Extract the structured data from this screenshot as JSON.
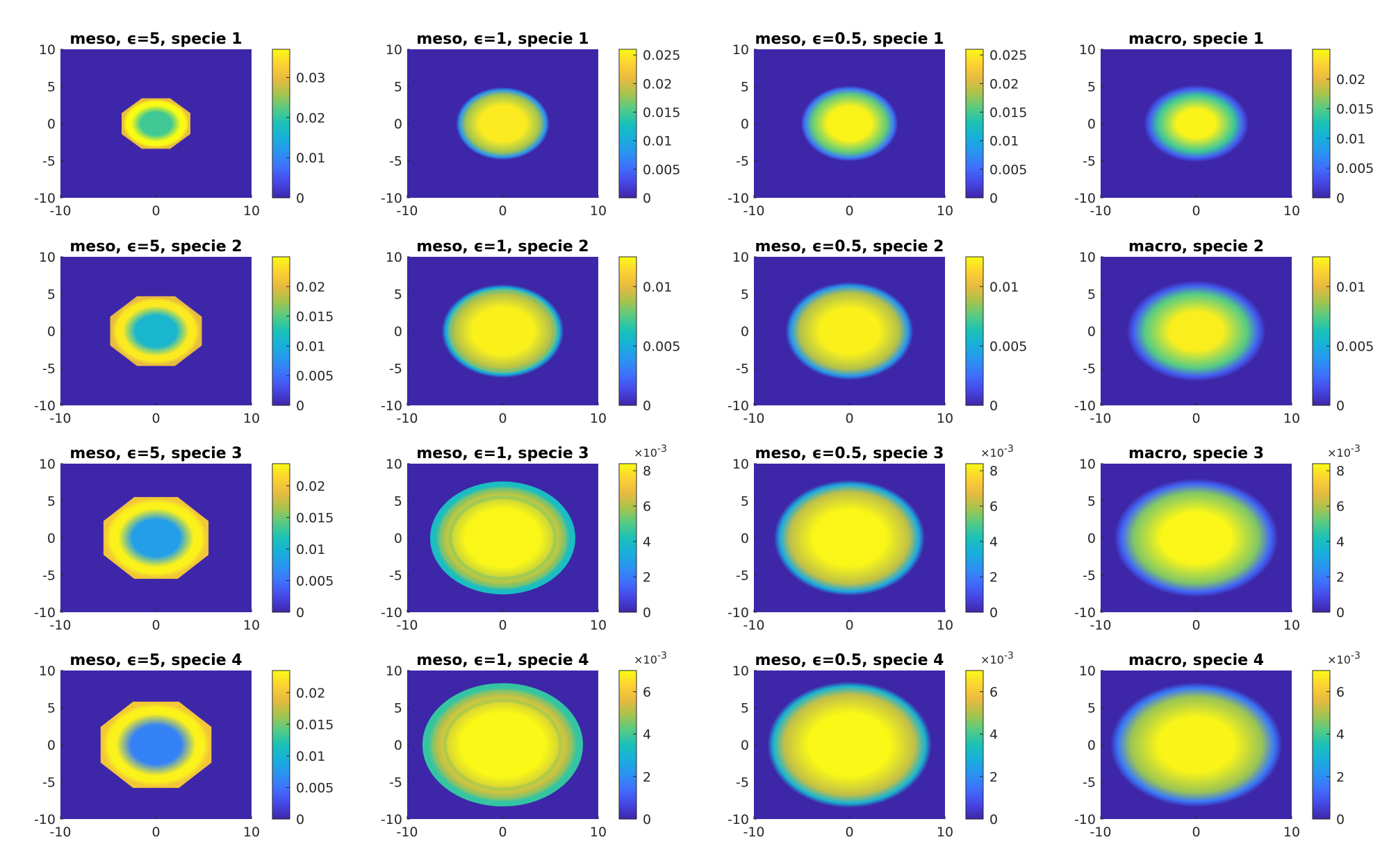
{
  "chart_data": {
    "type": "heatmap",
    "title": "",
    "colormap": "parula",
    "background_color": "#3e26a8",
    "columns": [
      "meso, eps=5",
      "meso, eps=1",
      "meso, eps=0.5",
      "macro"
    ],
    "panels": [
      {
        "title": "meso, ϵ=5, specie 1",
        "xlim": [
          -10,
          10
        ],
        "ylim": [
          -10,
          10
        ],
        "xticks": [
          "-10",
          "0",
          "10"
        ],
        "yticks": [
          "10",
          "5",
          "0",
          "-5",
          "-10"
        ],
        "clim": [
          0,
          0.037
        ],
        "cbar_ticks": [
          {
            "v": 0,
            "label": "0"
          },
          {
            "v": 0.01,
            "label": "0.01"
          },
          {
            "v": 0.02,
            "label": "0.02"
          },
          {
            "v": 0.03,
            "label": "0.03"
          }
        ],
        "cbar_exponent": "",
        "blob": {
          "shape": "octagon",
          "radius_x": 3.6,
          "radius_y": 3.4,
          "center_value": 0.021,
          "ring_value": 0.037,
          "edge_value": 0.03,
          "softness": 0.0,
          "rings": 0
        }
      },
      {
        "title": "meso, ϵ=1, specie 1",
        "xlim": [
          -10,
          10
        ],
        "ylim": [
          -10,
          10
        ],
        "xticks": [
          "-10",
          "0",
          "10"
        ],
        "yticks": [
          "10",
          "5",
          "0",
          "-5",
          "-10"
        ],
        "clim": [
          0,
          0.026
        ],
        "cbar_ticks": [
          {
            "v": 0,
            "label": "0"
          },
          {
            "v": 0.005,
            "label": "0.005"
          },
          {
            "v": 0.01,
            "label": "0.01"
          },
          {
            "v": 0.015,
            "label": "0.015"
          },
          {
            "v": 0.02,
            "label": "0.02"
          },
          {
            "v": 0.025,
            "label": "0.025"
          }
        ],
        "cbar_exponent": "",
        "blob": {
          "shape": "ellipse",
          "radius_x": 4.9,
          "radius_y": 4.9,
          "center_value": 0.025,
          "ring_value": 0.018,
          "edge_value": 0.008,
          "softness": 0.15,
          "rings": 0
        }
      },
      {
        "title": "meso, ϵ=0.5, specie 1",
        "xlim": [
          -10,
          10
        ],
        "ylim": [
          -10,
          10
        ],
        "xticks": [
          "-10",
          "0",
          "10"
        ],
        "yticks": [
          "10",
          "5",
          "0",
          "-5",
          "-10"
        ],
        "clim": [
          0,
          0.026
        ],
        "cbar_ticks": [
          {
            "v": 0,
            "label": "0"
          },
          {
            "v": 0.005,
            "label": "0.005"
          },
          {
            "v": 0.01,
            "label": "0.01"
          },
          {
            "v": 0.015,
            "label": "0.015"
          },
          {
            "v": 0.02,
            "label": "0.02"
          },
          {
            "v": 0.025,
            "label": "0.025"
          }
        ],
        "cbar_exponent": "",
        "blob": {
          "shape": "ellipse",
          "radius_x": 5.1,
          "radius_y": 5.1,
          "center_value": 0.0255,
          "ring_value": 0.016,
          "edge_value": 0.006,
          "softness": 0.25,
          "rings": 0
        }
      },
      {
        "title": "macro, specie 1",
        "xlim": [
          -10,
          10
        ],
        "ylim": [
          -10,
          10
        ],
        "xticks": [
          "-10",
          "0",
          "10"
        ],
        "yticks": [
          "10",
          "5",
          "0",
          "-5",
          "-10"
        ],
        "clim": [
          0,
          0.025
        ],
        "cbar_ticks": [
          {
            "v": 0,
            "label": "0"
          },
          {
            "v": 0.005,
            "label": "0.005"
          },
          {
            "v": 0.01,
            "label": "0.01"
          },
          {
            "v": 0.015,
            "label": "0.015"
          },
          {
            "v": 0.02,
            "label": "0.02"
          }
        ],
        "cbar_exponent": "",
        "blob": {
          "shape": "ellipse",
          "radius_x": 5.5,
          "radius_y": 5.2,
          "center_value": 0.0245,
          "ring_value": 0.014,
          "edge_value": 0.004,
          "softness": 0.45,
          "rings": 0
        }
      },
      {
        "title": "meso, ϵ=5, specie 2",
        "xlim": [
          -10,
          10
        ],
        "ylim": [
          -10,
          10
        ],
        "xticks": [
          "-10",
          "0",
          "10"
        ],
        "yticks": [
          "10",
          "5",
          "0",
          "-5",
          "-10"
        ],
        "clim": [
          0,
          0.025
        ],
        "cbar_ticks": [
          {
            "v": 0,
            "label": "0"
          },
          {
            "v": 0.005,
            "label": "0.005"
          },
          {
            "v": 0.01,
            "label": "0.01"
          },
          {
            "v": 0.015,
            "label": "0.015"
          },
          {
            "v": 0.02,
            "label": "0.02"
          }
        ],
        "cbar_exponent": "",
        "blob": {
          "shape": "octagon",
          "radius_x": 4.8,
          "radius_y": 4.7,
          "center_value": 0.011,
          "ring_value": 0.024,
          "edge_value": 0.02,
          "softness": 0.0,
          "rings": 0
        }
      },
      {
        "title": "meso, ϵ=1, specie 2",
        "xlim": [
          -10,
          10
        ],
        "ylim": [
          -10,
          10
        ],
        "xticks": [
          "-10",
          "0",
          "10"
        ],
        "yticks": [
          "10",
          "5",
          "0",
          "-5",
          "-10"
        ],
        "clim": [
          0,
          0.0125
        ],
        "cbar_ticks": [
          {
            "v": 0,
            "label": "0"
          },
          {
            "v": 0.005,
            "label": "0.005"
          },
          {
            "v": 0.01,
            "label": "0.01"
          }
        ],
        "cbar_exponent": "",
        "blob": {
          "shape": "ellipse",
          "radius_x": 6.4,
          "radius_y": 6.3,
          "center_value": 0.0122,
          "ring_value": 0.009,
          "edge_value": 0.005,
          "softness": 0.12,
          "rings": 1
        }
      },
      {
        "title": "meso, ϵ=0.5, specie 2",
        "xlim": [
          -10,
          10
        ],
        "ylim": [
          -10,
          10
        ],
        "xticks": [
          "-10",
          "0",
          "10"
        ],
        "yticks": [
          "10",
          "5",
          "0",
          "-5",
          "-10"
        ],
        "clim": [
          0,
          0.0125
        ],
        "cbar_ticks": [
          {
            "v": 0,
            "label": "0"
          },
          {
            "v": 0.005,
            "label": "0.005"
          },
          {
            "v": 0.01,
            "label": "0.01"
          }
        ],
        "cbar_exponent": "",
        "blob": {
          "shape": "ellipse",
          "radius_x": 6.7,
          "radius_y": 6.6,
          "center_value": 0.0122,
          "ring_value": 0.009,
          "edge_value": 0.004,
          "softness": 0.22,
          "rings": 0
        }
      },
      {
        "title": "macro, specie 2",
        "xlim": [
          -10,
          10
        ],
        "ylim": [
          -10,
          10
        ],
        "xticks": [
          "-10",
          "0",
          "10"
        ],
        "yticks": [
          "10",
          "5",
          "0",
          "-5",
          "-10"
        ],
        "clim": [
          0,
          0.0125
        ],
        "cbar_ticks": [
          {
            "v": 0,
            "label": "0"
          },
          {
            "v": 0.005,
            "label": "0.005"
          },
          {
            "v": 0.01,
            "label": "0.01"
          }
        ],
        "cbar_exponent": "",
        "blob": {
          "shape": "ellipse",
          "radius_x": 7.3,
          "radius_y": 6.8,
          "center_value": 0.0121,
          "ring_value": 0.0075,
          "edge_value": 0.002,
          "softness": 0.42,
          "rings": 0
        }
      },
      {
        "title": "meso, ϵ=5, specie 3",
        "xlim": [
          -10,
          10
        ],
        "ylim": [
          -10,
          10
        ],
        "xticks": [
          "-10",
          "0",
          "10"
        ],
        "yticks": [
          "10",
          "5",
          "0",
          "-5",
          "-10"
        ],
        "clim": [
          0,
          0.0235
        ],
        "cbar_ticks": [
          {
            "v": 0,
            "label": "0"
          },
          {
            "v": 0.005,
            "label": "0.005"
          },
          {
            "v": 0.01,
            "label": "0.01"
          },
          {
            "v": 0.015,
            "label": "0.015"
          },
          {
            "v": 0.02,
            "label": "0.02"
          }
        ],
        "cbar_exponent": "",
        "blob": {
          "shape": "octagon",
          "radius_x": 5.5,
          "radius_y": 5.5,
          "center_value": 0.008,
          "ring_value": 0.023,
          "edge_value": 0.02,
          "softness": 0.0,
          "rings": 0
        }
      },
      {
        "title": "meso, ϵ=1, specie 3",
        "xlim": [
          -10,
          10
        ],
        "ylim": [
          -10,
          10
        ],
        "xticks": [
          "-10",
          "0",
          "10"
        ],
        "yticks": [
          "10",
          "5",
          "0",
          "-5",
          "-10"
        ],
        "clim": [
          0,
          8.4
        ],
        "cbar_ticks": [
          {
            "v": 0,
            "label": "0"
          },
          {
            "v": 2,
            "label": "2"
          },
          {
            "v": 4,
            "label": "4"
          },
          {
            "v": 6,
            "label": "6"
          },
          {
            "v": 8,
            "label": "8"
          }
        ],
        "cbar_exponent": "-3",
        "blob": {
          "shape": "ellipse",
          "radius_x": 7.6,
          "radius_y": 7.6,
          "center_value": 8.3,
          "ring_value": 6.0,
          "edge_value": 4.0,
          "softness": 0.08,
          "rings": 2
        }
      },
      {
        "title": "meso, ϵ=0.5, specie 3",
        "xlim": [
          -10,
          10
        ],
        "ylim": [
          -10,
          10
        ],
        "xticks": [
          "-10",
          "0",
          "10"
        ],
        "yticks": [
          "10",
          "5",
          "0",
          "-5",
          "-10"
        ],
        "clim": [
          0,
          8.4
        ],
        "cbar_ticks": [
          {
            "v": 0,
            "label": "0"
          },
          {
            "v": 2,
            "label": "2"
          },
          {
            "v": 4,
            "label": "4"
          },
          {
            "v": 6,
            "label": "6"
          },
          {
            "v": 8,
            "label": "8"
          }
        ],
        "cbar_exponent": "-3",
        "blob": {
          "shape": "ellipse",
          "radius_x": 7.9,
          "radius_y": 7.8,
          "center_value": 8.3,
          "ring_value": 6.2,
          "edge_value": 3.2,
          "softness": 0.16,
          "rings": 0
        }
      },
      {
        "title": "macro, specie 3",
        "xlim": [
          -10,
          10
        ],
        "ylim": [
          -10,
          10
        ],
        "xticks": [
          "-10",
          "0",
          "10"
        ],
        "yticks": [
          "10",
          "5",
          "0",
          "-5",
          "-10"
        ],
        "clim": [
          0,
          8.4
        ],
        "cbar_ticks": [
          {
            "v": 0,
            "label": "0"
          },
          {
            "v": 2,
            "label": "2"
          },
          {
            "v": 4,
            "label": "4"
          },
          {
            "v": 6,
            "label": "6"
          },
          {
            "v": 8,
            "label": "8"
          }
        ],
        "cbar_exponent": "-3",
        "blob": {
          "shape": "ellipse",
          "radius_x": 8.6,
          "radius_y": 8.0,
          "center_value": 8.3,
          "ring_value": 5.5,
          "edge_value": 1.5,
          "softness": 0.3,
          "rings": 0
        }
      },
      {
        "title": "meso, ϵ=5, specie 4",
        "xlim": [
          -10,
          10
        ],
        "ylim": [
          -10,
          10
        ],
        "xticks": [
          "-10",
          "0",
          "10"
        ],
        "yticks": [
          "10",
          "5",
          "0",
          "-5",
          "-10"
        ],
        "clim": [
          0,
          0.0235
        ],
        "cbar_ticks": [
          {
            "v": 0,
            "label": "0"
          },
          {
            "v": 0.005,
            "label": "0.005"
          },
          {
            "v": 0.01,
            "label": "0.01"
          },
          {
            "v": 0.015,
            "label": "0.015"
          },
          {
            "v": 0.02,
            "label": "0.02"
          }
        ],
        "cbar_exponent": "",
        "blob": {
          "shape": "octagon",
          "radius_x": 5.8,
          "radius_y": 5.8,
          "center_value": 0.006,
          "ring_value": 0.023,
          "edge_value": 0.02,
          "softness": 0.0,
          "rings": 0
        }
      },
      {
        "title": "meso, ϵ=1, specie 4",
        "xlim": [
          -10,
          10
        ],
        "ylim": [
          -10,
          10
        ],
        "xticks": [
          "-10",
          "0",
          "10"
        ],
        "yticks": [
          "10",
          "5",
          "0",
          "-5",
          "-10"
        ],
        "clim": [
          0,
          7.0
        ],
        "cbar_ticks": [
          {
            "v": 0,
            "label": "0"
          },
          {
            "v": 2,
            "label": "2"
          },
          {
            "v": 4,
            "label": "4"
          },
          {
            "v": 6,
            "label": "6"
          }
        ],
        "cbar_exponent": "-3",
        "blob": {
          "shape": "ellipse",
          "radius_x": 8.4,
          "radius_y": 8.3,
          "center_value": 6.95,
          "ring_value": 5.2,
          "edge_value": 3.8,
          "softness": 0.07,
          "rings": 2
        }
      },
      {
        "title": "meso, ϵ=0.5, specie 4",
        "xlim": [
          -10,
          10
        ],
        "ylim": [
          -10,
          10
        ],
        "xticks": [
          "-10",
          "0",
          "10"
        ],
        "yticks": [
          "10",
          "5",
          "0",
          "-5",
          "-10"
        ],
        "clim": [
          0,
          7.0
        ],
        "cbar_ticks": [
          {
            "v": 0,
            "label": "0"
          },
          {
            "v": 2,
            "label": "2"
          },
          {
            "v": 4,
            "label": "4"
          },
          {
            "v": 6,
            "label": "6"
          }
        ],
        "cbar_exponent": "-3",
        "blob": {
          "shape": "ellipse",
          "radius_x": 8.6,
          "radius_y": 8.5,
          "center_value": 6.95,
          "ring_value": 5.2,
          "edge_value": 3.0,
          "softness": 0.14,
          "rings": 0
        }
      },
      {
        "title": "macro, specie 4",
        "xlim": [
          -10,
          10
        ],
        "ylim": [
          -10,
          10
        ],
        "xticks": [
          "-10",
          "0",
          "10"
        ],
        "yticks": [
          "10",
          "5",
          "0",
          "-5",
          "-10"
        ],
        "clim": [
          0,
          7.0
        ],
        "cbar_ticks": [
          {
            "v": 0,
            "label": "0"
          },
          {
            "v": 2,
            "label": "2"
          },
          {
            "v": 4,
            "label": "4"
          },
          {
            "v": 6,
            "label": "6"
          }
        ],
        "cbar_exponent": "-3",
        "blob": {
          "shape": "ellipse",
          "radius_x": 9.0,
          "radius_y": 8.4,
          "center_value": 6.9,
          "ring_value": 4.8,
          "edge_value": 1.6,
          "softness": 0.28,
          "rings": 0
        }
      }
    ]
  }
}
